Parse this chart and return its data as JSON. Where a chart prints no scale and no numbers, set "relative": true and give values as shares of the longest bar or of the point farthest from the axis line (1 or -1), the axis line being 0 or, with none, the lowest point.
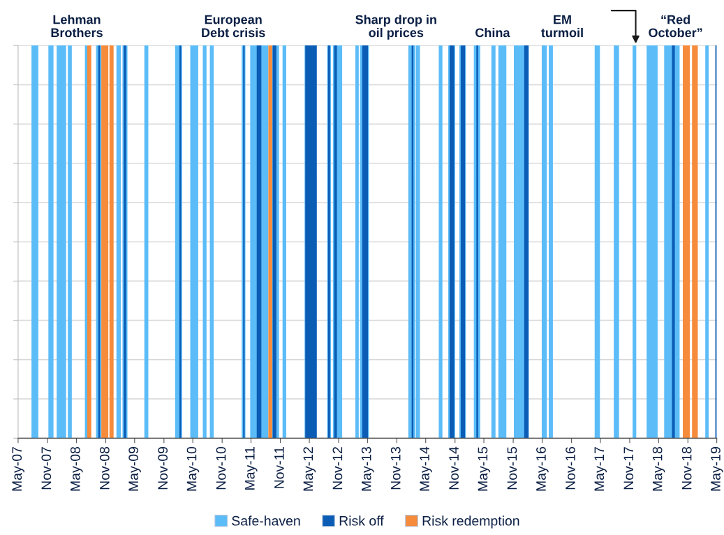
{
  "chart_data": {
    "type": "area",
    "relative": true,
    "xlim": [
      "2007-05",
      "2019-05"
    ],
    "xticks": [
      {
        "value": "2007-05",
        "label": "May-07"
      },
      {
        "value": "2007-11",
        "label": "Nov-07"
      },
      {
        "value": "2008-05",
        "label": "May-08"
      },
      {
        "value": "2008-11",
        "label": "Nov-08"
      },
      {
        "value": "2009-05",
        "label": "May-09"
      },
      {
        "value": "2009-11",
        "label": "Nov-09"
      },
      {
        "value": "2010-05",
        "label": "May-10"
      },
      {
        "value": "2010-11",
        "label": "Nov-10"
      },
      {
        "value": "2011-05",
        "label": "May-11"
      },
      {
        "value": "2011-11",
        "label": "Nov-11"
      },
      {
        "value": "2012-05",
        "label": "May-12"
      },
      {
        "value": "2012-11",
        "label": "Nov-12"
      },
      {
        "value": "2013-05",
        "label": "May-13"
      },
      {
        "value": "2013-11",
        "label": "Nov-13"
      },
      {
        "value": "2014-05",
        "label": "May-14"
      },
      {
        "value": "2014-11",
        "label": "Nov-14"
      },
      {
        "value": "2015-05",
        "label": "May-15"
      },
      {
        "value": "2015-11",
        "label": "Nov-15"
      },
      {
        "value": "2016-05",
        "label": "May-16"
      },
      {
        "value": "2016-11",
        "label": "Nov-16"
      },
      {
        "value": "2017-05",
        "label": "May-17"
      },
      {
        "value": "2017-11",
        "label": "Nov-17"
      },
      {
        "value": "2018-05",
        "label": "May-18"
      },
      {
        "value": "2018-11",
        "label": "Nov-18"
      },
      {
        "value": "2019-05",
        "label": "May-19"
      }
    ],
    "grid": "y",
    "legend": "bottom",
    "annotations": [
      "Lehman\nBrothers",
      "European\nDebt crisis",
      "Sharp drop in\noil prices",
      "China",
      "EM\nturmoil",
      "“Red\nOctober”"
    ],
    "series": [
      {
        "name": "Safe-haven",
        "color": "#5bbcf8",
        "x": [
          "2007-07-24",
          "2007-07-24",
          "2007-09-05",
          "2007-09-05",
          "2007-11-07",
          "2007-11-07",
          "2007-12-09",
          "2007-12-09",
          "2007-12-29",
          "2007-12-29",
          "2008-02-26",
          "2008-02-26",
          "2008-03-08",
          "2008-03-08",
          "2008-04-02",
          "2008-04-02",
          "2008-06-23",
          "2008-06-23",
          "2008-07-08",
          "2008-07-08",
          "2008-09-01",
          "2008-09-01",
          "2008-10-04",
          "2008-10-04",
          "2009-01-07",
          "2009-01-07",
          "2009-02-03",
          "2009-02-03",
          "2009-02-14",
          "2009-02-14",
          "2009-03-17",
          "2009-03-17",
          "2009-07-01",
          "2009-07-01",
          "2009-07-26",
          "2009-07-26",
          "2010-01-10",
          "2010-01-10",
          "2010-02-23",
          "2010-02-23",
          "2010-04-15",
          "2010-04-15",
          "2010-06-04",
          "2010-06-04",
          "2010-07-03",
          "2010-07-03",
          "2010-07-26",
          "2010-07-26",
          "2010-08-16",
          "2010-08-16",
          "2010-09-09",
          "2010-09-09",
          "2011-03-04",
          "2011-03-04",
          "2011-03-27",
          "2011-03-27",
          "2011-04-26",
          "2011-04-26",
          "2011-08-18",
          "2011-08-18",
          "2011-09-11",
          "2011-09-11",
          "2011-10-24",
          "2011-10-24",
          "2011-11-15",
          "2011-11-15",
          "2011-12-08",
          "2011-12-08",
          "2012-04-01",
          "2012-04-01",
          "2012-04-05",
          "2012-04-05",
          "2012-08-21",
          "2012-08-21",
          "2012-09-14",
          "2012-09-14",
          "2012-09-26",
          "2012-09-26",
          "2012-11-23",
          "2012-11-23",
          "2013-02-14",
          "2013-02-14",
          "2013-03-07",
          "2013-03-07",
          "2013-03-15",
          "2013-03-15",
          "2013-05-10",
          "2013-05-10",
          "2014-01-12",
          "2014-01-12",
          "2014-02-25",
          "2014-02-25",
          "2014-03-01",
          "2014-03-01",
          "2014-03-26",
          "2014-03-26",
          "2014-07-22",
          "2014-07-22",
          "2014-08-14",
          "2014-08-14",
          "2014-09-19",
          "2014-09-19",
          "2014-11-02",
          "2014-11-02",
          "2014-11-28",
          "2014-11-28",
          "2015-01-08",
          "2015-01-08",
          "2015-02-27",
          "2015-02-27",
          "2015-04-08",
          "2015-04-08",
          "2015-06-17",
          "2015-06-17",
          "2015-07-13",
          "2015-07-13",
          "2015-07-31",
          "2015-07-31",
          "2015-09-19",
          "2015-09-19",
          "2015-11-05",
          "2015-11-05",
          "2016-02-07",
          "2016-02-07",
          "2016-04-28",
          "2016-04-28",
          "2016-05-30",
          "2016-05-30",
          "2016-06-11",
          "2016-06-11",
          "2016-07-07",
          "2016-07-07",
          "2017-03-26",
          "2017-03-26",
          "2017-04-28",
          "2017-04-28",
          "2017-07-24",
          "2017-07-24",
          "2017-08-26",
          "2017-08-26",
          "2017-11-19",
          "2017-11-19",
          "2017-12-12",
          "2017-12-12",
          "2018-02-15",
          "2018-02-15",
          "2018-04-25",
          "2018-04-25",
          "2018-06-05",
          "2018-06-05",
          "2018-09-10",
          "2018-09-10",
          "2019-02-18",
          "2019-02-18",
          "2019-03-11",
          "2019-03-11"
        ],
        "values": [
          0,
          1,
          1,
          0,
          0,
          1,
          1,
          0,
          0,
          1,
          1,
          0,
          0,
          1,
          1,
          0,
          0,
          1,
          1,
          0,
          0,
          1,
          1,
          0,
          0,
          1,
          1,
          0,
          0,
          1,
          1,
          0,
          0,
          1,
          1,
          0,
          0,
          1,
          1,
          0,
          0,
          1,
          1,
          0,
          0,
          1,
          1,
          0,
          0,
          1,
          1,
          0,
          0,
          1,
          1,
          0,
          0,
          1,
          1,
          0,
          0,
          1,
          1,
          0,
          0,
          1,
          1,
          0,
          0,
          1,
          1,
          0,
          0,
          1,
          1,
          0,
          0,
          1,
          1,
          0,
          0,
          1,
          1,
          0,
          0,
          1,
          1,
          0,
          0,
          1,
          1,
          0,
          0,
          1,
          1,
          0,
          0,
          1,
          1,
          0,
          0,
          1,
          1,
          0,
          0,
          1,
          1,
          0,
          0,
          1,
          1,
          0,
          0,
          1,
          1,
          0,
          0,
          1,
          1,
          0,
          0,
          1,
          1,
          0,
          0,
          1,
          1,
          0,
          0,
          1,
          1,
          0,
          0,
          1,
          1,
          0,
          0,
          1,
          1,
          0,
          0,
          1,
          1,
          0,
          0,
          1,
          1,
          0,
          0,
          1,
          1,
          0,
          0,
          1,
          1,
          0
        ]
      },
      {
        "name": "Risk off",
        "color": "#0b5cb5",
        "x": [
          "2008-09-15",
          "2008-09-15",
          "2008-09-26",
          "2008-09-26",
          "2009-02-22",
          "2009-02-22",
          "2009-03-09",
          "2009-03-09",
          "2010-02-06",
          "2010-02-06",
          "2010-02-17",
          "2010-02-17",
          "2011-03-13",
          "2011-03-13",
          "2011-03-22",
          "2011-03-22",
          "2011-06-06",
          "2011-06-06",
          "2011-07-05",
          "2011-07-05",
          "2011-09-14",
          "2011-09-14",
          "2011-10-07",
          "2011-10-07",
          "2012-04-05",
          "2012-04-05",
          "2012-06-17",
          "2012-06-17",
          "2012-08-26",
          "2012-08-26",
          "2012-09-08",
          "2012-09-08",
          "2012-10-04",
          "2012-10-04",
          "2012-10-21",
          "2012-10-21",
          "2013-03-29",
          "2013-03-29",
          "2013-05-04",
          "2013-05-04",
          "2014-02-02",
          "2014-02-02",
          "2014-02-13",
          "2014-02-13",
          "2014-09-28",
          "2014-09-28",
          "2014-10-27",
          "2014-10-27",
          "2014-12-07",
          "2014-12-07",
          "2015-01-03",
          "2015-01-03",
          "2015-03-15",
          "2015-03-15",
          "2015-03-26",
          "2015-03-26",
          "2016-01-09",
          "2016-01-09",
          "2016-02-05",
          "2016-02-05",
          "2018-07-24",
          "2018-07-24",
          "2018-08-11",
          "2018-08-11",
          "2019-04-22",
          "2019-04-22",
          "2019-05-01",
          "2019-05-01"
        ],
        "values": [
          0,
          1,
          1,
          0,
          0,
          1,
          1,
          0,
          0,
          1,
          1,
          0,
          0,
          1,
          1,
          0,
          0,
          1,
          1,
          0,
          0,
          1,
          1,
          0,
          0,
          1,
          1,
          0,
          0,
          1,
          1,
          0,
          0,
          1,
          1,
          0,
          0,
          1,
          1,
          0,
          0,
          1,
          1,
          0,
          0,
          1,
          1,
          0,
          0,
          1,
          1,
          0,
          0,
          1,
          1,
          0,
          0,
          1,
          1,
          0,
          0,
          1,
          1,
          0,
          0,
          1,
          1,
          0
        ]
      },
      {
        "name": "Risk redemption",
        "color": "#f58b3b",
        "x": [
          "2008-07-08",
          "2008-07-08",
          "2008-08-02",
          "2008-08-02",
          "2008-10-04",
          "2008-10-04",
          "2008-11-17",
          "2008-11-17",
          "2008-11-24",
          "2008-11-24",
          "2008-12-20",
          "2008-12-20",
          "2011-08-18",
          "2011-08-18",
          "2011-09-11",
          "2011-09-11",
          "2018-09-30",
          "2018-09-30",
          "2018-11-13",
          "2018-11-13",
          "2018-11-27",
          "2018-11-27",
          "2019-01-02",
          "2019-01-02"
        ],
        "values": [
          0,
          1,
          1,
          0,
          0,
          1,
          1,
          0,
          0,
          1,
          1,
          0,
          0,
          1,
          1,
          0,
          0,
          1,
          1,
          0,
          0,
          1,
          1,
          0
        ]
      }
    ]
  }
}
